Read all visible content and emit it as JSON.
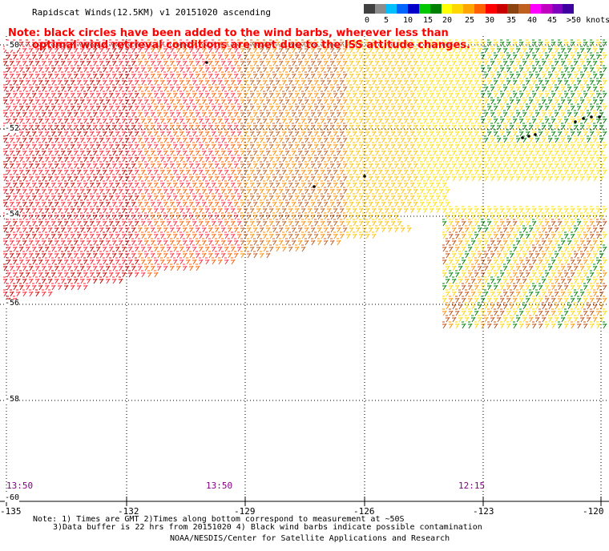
{
  "title": "Rapidscat Winds(12.5KM) v1 20151020 ascending",
  "note": {
    "line1": "Note: black circles have been added to the wind barbs, wherever less than",
    "line2": "optimal wind retrieval conditions are met due to the ISS attitude changes."
  },
  "legend": {
    "colors": [
      "#404040",
      "#8c8c8c",
      "#00bfff",
      "#0064ff",
      "#0000c8",
      "#00c800",
      "#008000",
      "#ffff00",
      "#ffd700",
      "#ffa500",
      "#ff6000",
      "#ff0000",
      "#c80000",
      "#8b4513",
      "#c06020",
      "#ff00ff",
      "#c000c0",
      "#8000c0",
      "#4000a0"
    ],
    "labels": [
      "0",
      "5",
      "10",
      "15",
      "20",
      "25",
      "30",
      "35",
      "40",
      "45",
      ">50 knots"
    ]
  },
  "axes": {
    "x_labels": [
      "-135",
      "-132",
      "-129",
      "-126",
      "-123",
      "-120"
    ],
    "y_labels": [
      "-50",
      "-52",
      "-54",
      "-56",
      "-58",
      "-60"
    ]
  },
  "time_labels": [
    "13:50",
    "13:50",
    "12:15"
  ],
  "footnote": {
    "line1": "Note: 1) Times are GMT 2)Times along bottom correspond to measurement at ~50S",
    "line2": "3)Data buffer is 22 hrs from 20151020 4) Black wind barbs indicate possible contamination"
  },
  "credit": "NOAA/NESDIS/Center for Satellite Applications and Research"
}
